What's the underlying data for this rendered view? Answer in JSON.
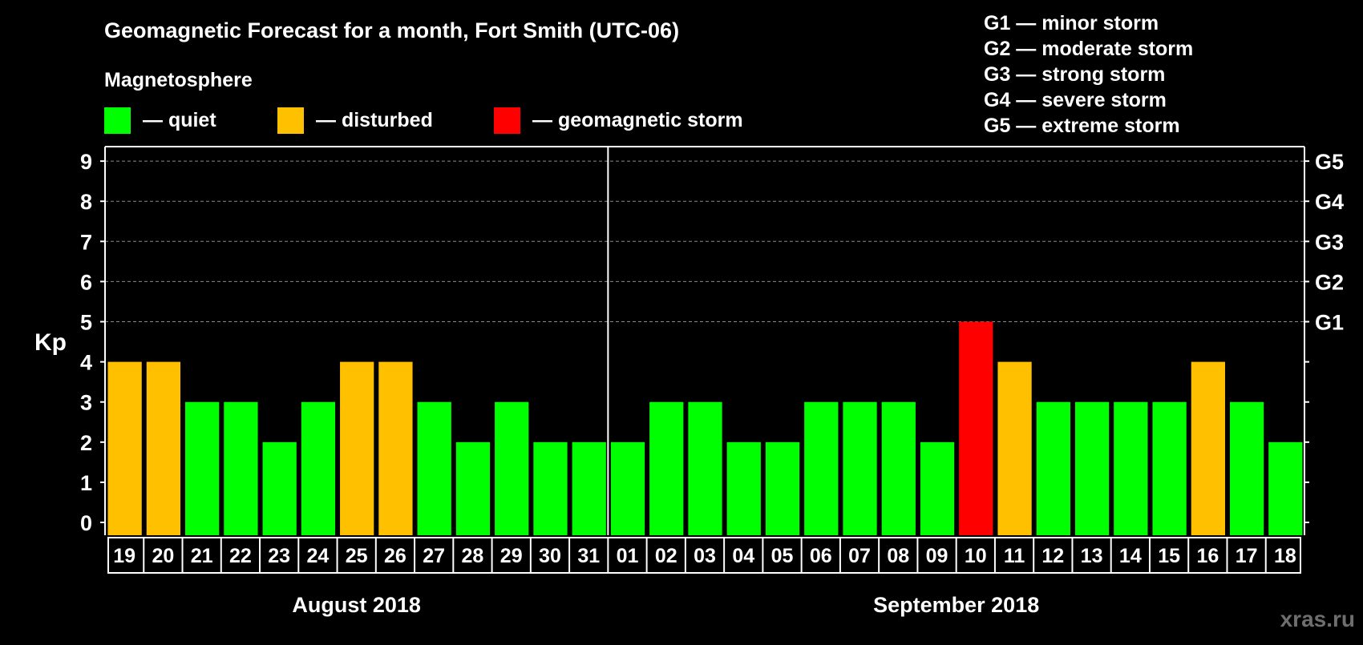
{
  "colors": {
    "quiet": "#00ff00",
    "disturbed": "#ffc000",
    "storm": "#ff0000",
    "background": "#000000",
    "foreground": "#ffffff",
    "grid": "#8a8a8a",
    "watermark": "#6e6e6e"
  },
  "legend": {
    "magnetosphere_title": "Magnetosphere",
    "items": [
      {
        "key": "quiet",
        "label": "— quiet"
      },
      {
        "key": "disturbed",
        "label": "— disturbed"
      },
      {
        "key": "storm",
        "label": "— geomagnetic storm"
      }
    ],
    "storm_scale": [
      "G1 — minor storm",
      "G2 — moderate storm",
      "G3 — strong storm",
      "G4 — severe storm",
      "G5 — extreme storm"
    ]
  },
  "watermark": "xras.ru",
  "chart_data": {
    "type": "bar",
    "title": "Geomagnetic Forecast for a month, Fort Smith (UTC-06)",
    "ylabel": "Kp",
    "xlabel": "",
    "ylim": [
      0,
      9
    ],
    "yticks": [
      "0",
      "1",
      "2",
      "3",
      "4",
      "5",
      "6",
      "7",
      "8",
      "9"
    ],
    "right_axis": [
      {
        "kp": 5,
        "label": "G1"
      },
      {
        "kp": 6,
        "label": "G2"
      },
      {
        "kp": 7,
        "label": "G3"
      },
      {
        "kp": 8,
        "label": "G4"
      },
      {
        "kp": 9,
        "label": "G5"
      }
    ],
    "grid": "dashed horizontal lines at Kp 5–9",
    "categories": [
      "19",
      "20",
      "21",
      "22",
      "23",
      "24",
      "25",
      "26",
      "27",
      "28",
      "29",
      "30",
      "31",
      "01",
      "02",
      "03",
      "04",
      "05",
      "06",
      "07",
      "08",
      "09",
      "10",
      "11",
      "12",
      "13",
      "14",
      "15",
      "16",
      "17",
      "18"
    ],
    "values": [
      4,
      4,
      3,
      3,
      2,
      3,
      4,
      4,
      3,
      2,
      3,
      2,
      2,
      2,
      3,
      3,
      2,
      2,
      3,
      3,
      3,
      2,
      5,
      4,
      3,
      3,
      3,
      3,
      4,
      3,
      2
    ],
    "levels": [
      "disturbed",
      "disturbed",
      "quiet",
      "quiet",
      "quiet",
      "quiet",
      "disturbed",
      "disturbed",
      "quiet",
      "quiet",
      "quiet",
      "quiet",
      "quiet",
      "quiet",
      "quiet",
      "quiet",
      "quiet",
      "quiet",
      "quiet",
      "quiet",
      "quiet",
      "quiet",
      "storm",
      "disturbed",
      "quiet",
      "quiet",
      "quiet",
      "quiet",
      "disturbed",
      "quiet",
      "quiet"
    ],
    "months": [
      {
        "label": "August 2018",
        "count": 13
      },
      {
        "label": "September 2018",
        "count": 18
      }
    ]
  }
}
